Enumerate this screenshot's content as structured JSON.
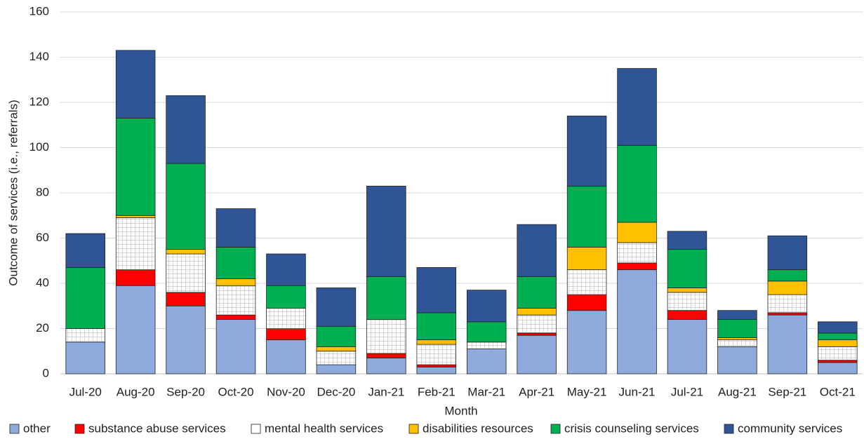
{
  "chart_data": {
    "type": "stacked_bar",
    "x_label": "Month",
    "y_label": "Outcome of services (i.e., referrals)",
    "categories": [
      "Jul-20",
      "Aug-20",
      "Sep-20",
      "Oct-20",
      "Nov-20",
      "Dec-20",
      "Jan-21",
      "Feb-21",
      "Mar-21",
      "Apr-21",
      "May-21",
      "Jun-21",
      "Jul-21",
      "Aug-21",
      "Sep-21",
      "Oct-21"
    ],
    "series": [
      {
        "name": "other",
        "color": "#8faadc",
        "values": [
          14,
          39,
          30,
          24,
          15,
          4,
          7,
          3,
          11,
          17,
          28,
          46,
          24,
          12,
          26,
          5
        ]
      },
      {
        "name": "substance abuse services",
        "color": "#ff0000",
        "values": [
          0,
          7,
          6,
          2,
          5,
          0,
          2,
          1,
          0,
          1,
          7,
          3,
          4,
          0,
          1,
          1
        ]
      },
      {
        "name": "mental health services",
        "color": "#ffffff",
        "values": [
          6,
          23,
          17,
          13,
          9,
          6,
          15,
          9,
          3,
          8,
          11,
          9,
          8,
          3,
          8,
          6
        ]
      },
      {
        "name": "disabilities resources",
        "color": "#ffc000",
        "values": [
          0,
          1,
          2,
          3,
          0,
          2,
          0,
          2,
          0,
          3,
          10,
          9,
          2,
          1,
          6,
          3
        ]
      },
      {
        "name": "crisis counseling services",
        "color": "#00b050",
        "values": [
          27,
          43,
          38,
          14,
          10,
          9,
          19,
          12,
          9,
          14,
          27,
          34,
          17,
          8,
          5,
          3
        ]
      },
      {
        "name": "community services",
        "color": "#2f5597",
        "values": [
          15,
          30,
          30,
          17,
          14,
          17,
          40,
          20,
          14,
          23,
          31,
          34,
          8,
          4,
          15,
          5
        ]
      }
    ],
    "ylim": [
      0,
      160
    ],
    "yticks": [
      0,
      20,
      40,
      60,
      80,
      100,
      120,
      140,
      160
    ],
    "grid": true,
    "legend": "bottom"
  }
}
